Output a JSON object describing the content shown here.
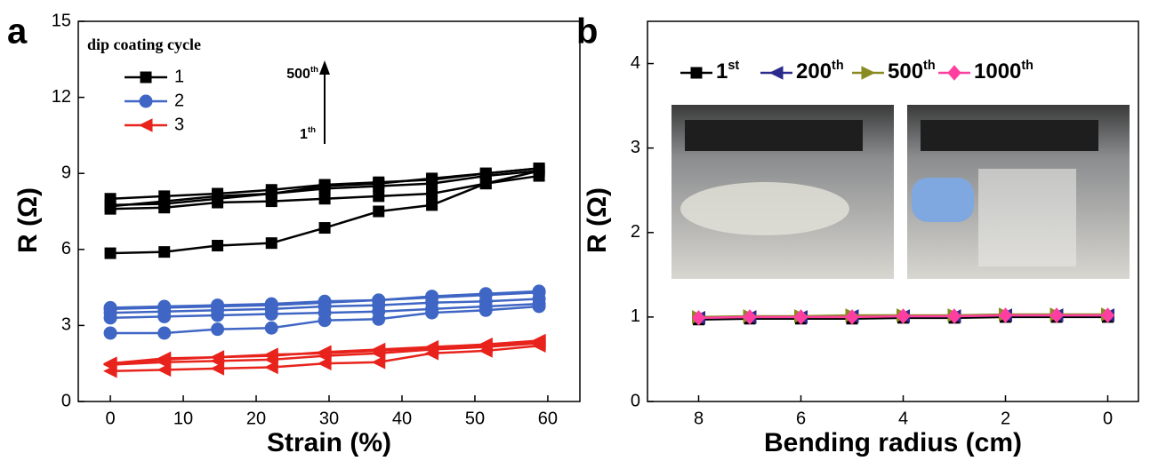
{
  "chart_data": [
    {
      "type": "line",
      "panel_label": "a",
      "xlabel": "Strain (%)",
      "ylabel": "R (Ω)",
      "xlim": [
        -4.4,
        64.4
      ],
      "ylim": [
        0,
        15
      ],
      "xticks": [
        0,
        10,
        20,
        30,
        40,
        50,
        60
      ],
      "yticks": [
        0,
        3,
        6,
        9,
        12,
        15
      ],
      "legend": "top-left",
      "legend_title": "dip coating cycle",
      "annotations": [
        "500th",
        "1th"
      ],
      "x": [
        0,
        7.4,
        14.7,
        22.1,
        29.4,
        36.8,
        44.1,
        51.5,
        58.8
      ],
      "series": [
        {
          "name": "1",
          "color": "#000000",
          "marker": "square",
          "values": [
            [
              5.85,
              5.9,
              6.15,
              6.25,
              6.85,
              7.5,
              7.75,
              8.6,
              9.1
            ],
            [
              7.6,
              7.65,
              7.85,
              7.9,
              8.0,
              8.1,
              8.2,
              8.6,
              8.9
            ],
            [
              7.75,
              7.8,
              8.0,
              8.2,
              8.4,
              8.5,
              8.6,
              8.9,
              9.1
            ],
            [
              8.0,
              8.1,
              8.2,
              8.35,
              8.55,
              8.65,
              8.75,
              9.0,
              9.2
            ],
            [
              7.7,
              7.9,
              8.1,
              8.2,
              8.5,
              8.6,
              8.8,
              9.0,
              9.2
            ]
          ]
        },
        {
          "name": "2",
          "color": "#3f66c4",
          "marker": "circle",
          "values": [
            [
              2.7,
              2.7,
              2.85,
              2.9,
              3.2,
              3.25,
              3.5,
              3.6,
              3.75
            ],
            [
              3.3,
              3.35,
              3.4,
              3.45,
              3.5,
              3.55,
              3.65,
              3.75,
              3.85
            ],
            [
              3.5,
              3.55,
              3.6,
              3.65,
              3.75,
              3.8,
              3.9,
              3.95,
              4.05
            ],
            [
              3.7,
              3.75,
              3.8,
              3.85,
              3.95,
              4.0,
              4.15,
              4.25,
              4.35
            ],
            [
              3.65,
              3.7,
              3.75,
              3.8,
              3.9,
              4.0,
              4.1,
              4.2,
              4.3
            ]
          ]
        },
        {
          "name": "3",
          "color": "#e8231c",
          "marker": "tri-left",
          "values": [
            [
              1.2,
              1.25,
              1.3,
              1.35,
              1.5,
              1.55,
              1.9,
              2.0,
              2.2
            ],
            [
              1.45,
              1.55,
              1.6,
              1.65,
              1.8,
              1.9,
              2.05,
              2.15,
              2.3
            ],
            [
              1.5,
              1.7,
              1.75,
              1.85,
              1.9,
              2.0,
              2.1,
              2.2,
              2.35
            ],
            [
              1.45,
              1.65,
              1.75,
              1.8,
              1.95,
              2.05,
              2.15,
              2.25,
              2.4
            ]
          ]
        }
      ]
    },
    {
      "type": "line",
      "panel_label": "b",
      "xlabel": "Bending radius (cm)",
      "ylabel": "R (Ω)",
      "xlim": [
        9.0,
        -0.6
      ],
      "ylim": [
        0,
        4.5
      ],
      "xticks": [
        8,
        6,
        4,
        2,
        0
      ],
      "yticks": [
        0,
        1,
        2,
        3,
        4
      ],
      "legend": "top",
      "x": [
        8,
        7,
        6,
        5,
        4,
        3,
        2,
        1,
        0
      ],
      "series": [
        {
          "name": "1st",
          "color": "#000000",
          "marker": "square",
          "values": [
            0.97,
            0.98,
            0.98,
            0.98,
            0.99,
            0.99,
            1.0,
            1.0,
            1.0
          ]
        },
        {
          "name": "200th",
          "color": "#2b2b8c",
          "marker": "tri-left",
          "values": [
            0.99,
            1.0,
            1.0,
            1.01,
            1.01,
            1.01,
            1.02,
            1.02,
            1.02
          ]
        },
        {
          "name": "500th",
          "color": "#8a8a22",
          "marker": "tri-right",
          "values": [
            1.0,
            1.01,
            1.01,
            1.02,
            1.02,
            1.02,
            1.03,
            1.03,
            1.03
          ]
        },
        {
          "name": "1000th",
          "color": "#ff3fa0",
          "marker": "diamond",
          "values": [
            0.99,
            1.0,
            1.0,
            1.0,
            1.01,
            1.01,
            1.02,
            1.02,
            1.02
          ]
        }
      ]
    }
  ]
}
